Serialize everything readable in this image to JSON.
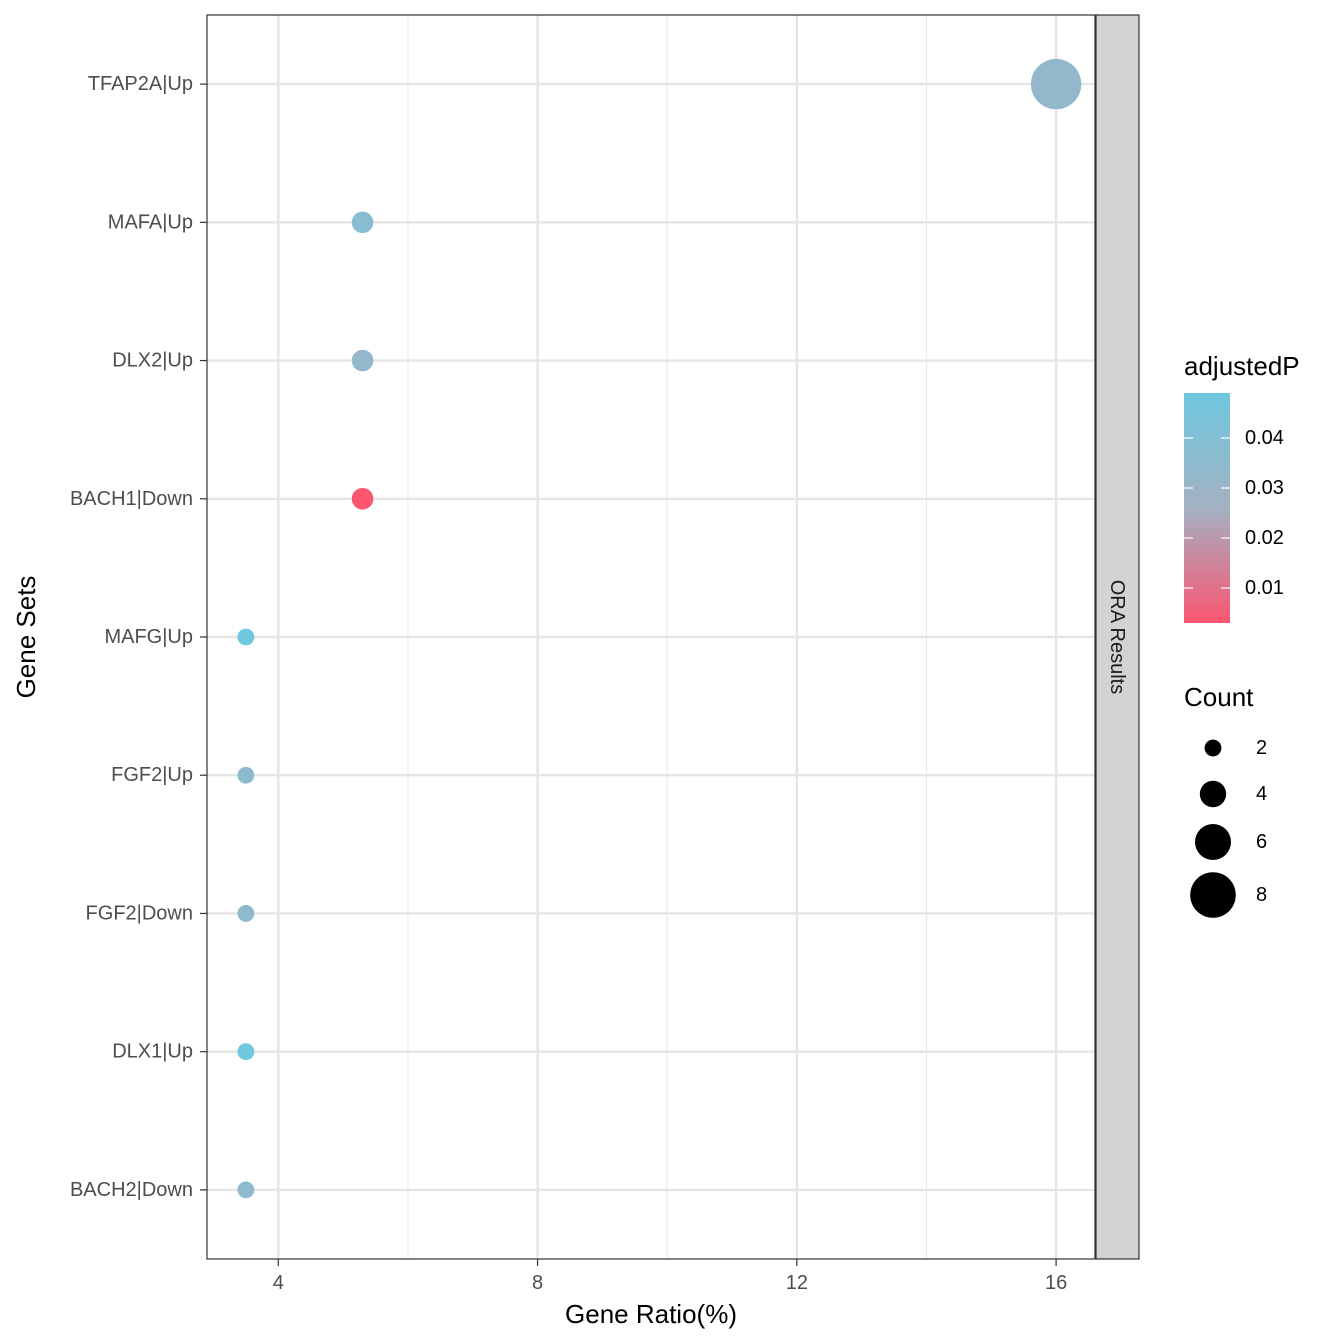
{
  "chart_data": {
    "type": "scatter",
    "title": "",
    "xlabel": "Gene Ratio(%)",
    "ylabel": "Gene Sets",
    "facet_label": "ORA Results",
    "xlim": [
      2.9,
      16.6
    ],
    "x_ticks": [
      4,
      8,
      12,
      16
    ],
    "grid": true,
    "categories": [
      "TFAP2A|Up",
      "MAFA|Up",
      "DLX2|Up",
      "BACH1|Down",
      "MAFG|Up",
      "FGF2|Up",
      "FGF2|Down",
      "DLX1|Up",
      "BACH2|Down"
    ],
    "points": [
      {
        "label": "TFAP2A|Up",
        "x": 16.0,
        "count": 9,
        "adjustedP": 0.033
      },
      {
        "label": "MAFA|Up",
        "x": 5.3,
        "count": 3,
        "adjustedP": 0.038
      },
      {
        "label": "DLX2|Up",
        "x": 5.3,
        "count": 3,
        "adjustedP": 0.033
      },
      {
        "label": "BACH1|Down",
        "x": 5.3,
        "count": 3,
        "adjustedP": 0.003
      },
      {
        "label": "MAFG|Up",
        "x": 3.5,
        "count": 2,
        "adjustedP": 0.049
      },
      {
        "label": "FGF2|Up",
        "x": 3.5,
        "count": 2,
        "adjustedP": 0.035
      },
      {
        "label": "FGF2|Down",
        "x": 3.5,
        "count": 2,
        "adjustedP": 0.035
      },
      {
        "label": "DLX1|Up",
        "x": 3.5,
        "count": 2,
        "adjustedP": 0.049
      },
      {
        "label": "BACH2|Down",
        "x": 3.5,
        "count": 2,
        "adjustedP": 0.035
      }
    ],
    "color_legend": {
      "title": "adjustedP",
      "ticks": [
        "0.01",
        "0.02",
        "0.03",
        "0.04"
      ],
      "tick_values": [
        0.01,
        0.02,
        0.03,
        0.04
      ],
      "range": [
        0.003,
        0.049
      ],
      "low_color": "#FB5570",
      "high_color": "#6EC8DF"
    },
    "size_legend": {
      "title": "Count",
      "labels": [
        "2",
        "4",
        "6",
        "8"
      ],
      "values": [
        2,
        4,
        6,
        8
      ]
    },
    "legend_position": "right"
  }
}
